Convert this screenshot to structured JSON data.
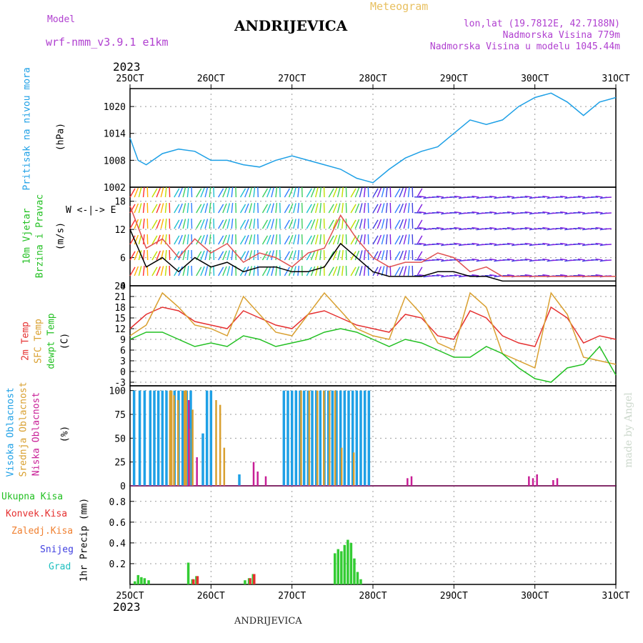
{
  "header": {
    "model_label": "Model",
    "model_name": "wrf-nmm_v3.9.1 e1km",
    "title": "ANDRIJEVICA",
    "meteogram": "Meteogram",
    "lonlat": "lon,lat (19.7812E, 42.7188N)",
    "altitude": "Nadmorska Visina 779m",
    "model_altitude": "Nadmorska Visina u modelu 1045.44m",
    "year_top": "2023",
    "year_bottom": "2023",
    "footer": "ANDRIJEVICA",
    "watermark": "made by Angel"
  },
  "colors": {
    "pressure": "#1ea0e6",
    "wind_speed": "#000000",
    "wind_gust": "#e05050",
    "temp2m": "#e53030",
    "sfc": "#d9a030",
    "dewpt": "#22c022",
    "cloud_high": "#1ea0e6",
    "cloud_mid": "#d9a030",
    "cloud_low": "#c81e96",
    "precip_total": "#33cc33",
    "precip_conv": "#e53030",
    "precip_frozen": "#f08030",
    "snow": "#4040e0",
    "graupel": "#20c0c0"
  },
  "chart_data": {
    "x_ticks": [
      "25OCT",
      "26OCT",
      "27OCT",
      "28OCT",
      "29OCT",
      "30OCT",
      "31OCT"
    ],
    "panels": [
      {
        "type": "line",
        "name": "pressure",
        "labels": [
          "Pritisak na nivou mora",
          "(hPa)"
        ],
        "y_ticks": [
          1002,
          1008,
          1014,
          1020
        ],
        "ylim": [
          1002,
          1024
        ],
        "series": [
          {
            "name": "Pritisak na nivou mora",
            "x": [
              0,
              0.1,
              0.2,
              0.4,
              0.6,
              0.8,
              1.0,
              1.2,
              1.4,
              1.6,
              1.8,
              2.0,
              2.2,
              2.4,
              2.6,
              2.8,
              3.0,
              3.2,
              3.4,
              3.6,
              3.8,
              4.0,
              4.2,
              4.4,
              4.6,
              4.8,
              5.0,
              5.2,
              5.4,
              5.6,
              5.8,
              6.0
            ],
            "values": [
              1013,
              1008,
              1007,
              1009.5,
              1010.5,
              1010,
              1008,
              1008,
              1007,
              1006.5,
              1008,
              1009,
              1008,
              1007,
              1006,
              1004,
              1003,
              1006,
              1008.5,
              1010,
              1011,
              1014,
              1017,
              1016,
              1017,
              1020,
              1022,
              1023,
              1021,
              1018,
              1021,
              1022
            ]
          }
        ]
      },
      {
        "type": "line",
        "name": "wind",
        "labels": [
          "10m Vjetar",
          "Brzina i Pravac",
          "(m/s)"
        ],
        "y_ticks": [
          0,
          6,
          12,
          18
        ],
        "ylim": [
          0,
          21
        ],
        "series": [
          {
            "name": "10m Vjetar Brzina",
            "x": [
              0,
              0.2,
              0.4,
              0.6,
              0.8,
              1.0,
              1.2,
              1.4,
              1.6,
              1.8,
              2.0,
              2.2,
              2.4,
              2.6,
              2.8,
              3.0,
              3.2,
              3.4,
              3.6,
              3.8,
              4.0,
              4.2,
              4.4,
              4.6,
              4.8,
              5.0,
              5.2,
              5.4,
              5.6,
              5.8,
              6.0
            ],
            "values": [
              12,
              4,
              6,
              3,
              6,
              4,
              5,
              3,
              4,
              4,
              3,
              3,
              4,
              9,
              6,
              3,
              2,
              2,
              2,
              3,
              3,
              2,
              2,
              1,
              1,
              1,
              1,
              1,
              1,
              1,
              1
            ]
          },
          {
            "name": "Udari",
            "x": [
              0,
              0.2,
              0.4,
              0.6,
              0.8,
              1.0,
              1.2,
              1.4,
              1.6,
              1.8,
              2.0,
              2.2,
              2.4,
              2.6,
              2.8,
              3.0,
              3.2,
              3.4,
              3.6,
              3.8,
              4.0,
              4.2,
              4.4,
              4.6,
              4.8,
              5.0,
              5.2,
              5.4,
              5.6,
              5.8,
              6.0
            ],
            "values": [
              17,
              8,
              10,
              6,
              10,
              7,
              9,
              5,
              7,
              6,
              4,
              7,
              8,
              15,
              10,
              6,
              4,
              5,
              5,
              7,
              6,
              3,
              4,
              2,
              2,
              2,
              2,
              2,
              2,
              2,
              2
            ]
          }
        ]
      },
      {
        "type": "line",
        "name": "temperature",
        "labels": [
          "2m Temp",
          "SFC Temp",
          "dewpt Temp",
          "(C)"
        ],
        "y_ticks": [
          -3,
          0,
          3,
          6,
          9,
          12,
          15,
          18,
          21,
          24
        ],
        "ylim": [
          -4,
          24
        ],
        "series": [
          {
            "name": "2m Temp",
            "x": [
              0,
              0.2,
              0.4,
              0.6,
              0.8,
              1.0,
              1.2,
              1.4,
              1.6,
              1.8,
              2.0,
              2.2,
              2.4,
              2.6,
              2.8,
              3.0,
              3.2,
              3.4,
              3.6,
              3.8,
              4.0,
              4.2,
              4.4,
              4.6,
              4.8,
              5.0,
              5.2,
              5.4,
              5.6,
              5.8,
              6.0
            ],
            "values": [
              12,
              16,
              18,
              17,
              14,
              13,
              12,
              17,
              15,
              13,
              12,
              16,
              17,
              15,
              13,
              12,
              11,
              16,
              15,
              10,
              9,
              17,
              15,
              10,
              8,
              7,
              18,
              15,
              8,
              10,
              9
            ]
          },
          {
            "name": "SFC Temp",
            "x": [
              0,
              0.2,
              0.4,
              0.6,
              0.8,
              1.0,
              1.2,
              1.4,
              1.6,
              1.8,
              2.0,
              2.2,
              2.4,
              2.6,
              2.8,
              3.0,
              3.2,
              3.4,
              3.6,
              3.8,
              4.0,
              4.2,
              4.4,
              4.6,
              4.8,
              5.0,
              5.2,
              5.4,
              5.6,
              5.8,
              6.0
            ],
            "values": [
              10,
              13,
              22,
              18,
              13,
              12,
              10,
              21,
              16,
              11,
              10,
              16,
              22,
              17,
              12,
              10,
              9,
              21,
              16,
              8,
              6,
              22,
              18,
              5,
              3,
              1,
              22,
              16,
              4,
              3,
              2
            ]
          },
          {
            "name": "dewpt Temp",
            "x": [
              0,
              0.2,
              0.4,
              0.6,
              0.8,
              1.0,
              1.2,
              1.4,
              1.6,
              1.8,
              2.0,
              2.2,
              2.4,
              2.6,
              2.8,
              3.0,
              3.2,
              3.4,
              3.6,
              3.8,
              4.0,
              4.2,
              4.4,
              4.6,
              4.8,
              5.0,
              5.2,
              5.4,
              5.6,
              5.8,
              6.0
            ],
            "values": [
              9,
              11,
              11,
              9,
              7,
              8,
              7,
              10,
              9,
              7,
              8,
              9,
              11,
              12,
              11,
              9,
              7,
              9,
              8,
              6,
              4,
              4,
              7,
              5,
              1,
              -2,
              -3,
              1,
              2,
              7,
              -1
            ]
          }
        ]
      },
      {
        "type": "bar",
        "name": "cloud",
        "labels": [
          "Visoka Oblacnost",
          "Srednja Oblacnost",
          "Niska Oblacnost",
          "(%)"
        ],
        "y_ticks": [
          0,
          25,
          50,
          75,
          100
        ],
        "ylim": [
          0,
          105
        ],
        "series": [
          {
            "name": "Visoka Oblacnost",
            "x": [
              0.05,
              0.12,
              0.18,
              0.25,
              0.3,
              0.35,
              0.4,
              0.45,
              0.5,
              0.55,
              0.6,
              0.65,
              0.7,
              0.75,
              0.9,
              0.95,
              1.0,
              1.35,
              1.9,
              1.95,
              2.0,
              2.05,
              2.1,
              2.15,
              2.2,
              2.25,
              2.3,
              2.35,
              2.4,
              2.45,
              2.5,
              2.55,
              2.6,
              2.65,
              2.7,
              2.75,
              2.8,
              2.85,
              2.9,
              2.95
            ],
            "values": [
              100,
              100,
              100,
              100,
              100,
              100,
              100,
              100,
              100,
              100,
              100,
              100,
              100,
              100,
              55,
              100,
              100,
              12,
              100,
              100,
              100,
              100,
              100,
              100,
              100,
              100,
              100,
              100,
              100,
              100,
              100,
              100,
              100,
              100,
              100,
              100,
              100,
              100,
              100,
              100
            ]
          },
          {
            "name": "Srednja Oblacnost",
            "x": [
              0.48,
              0.5,
              0.53,
              0.58,
              0.66,
              0.68,
              0.72,
              0.76,
              1.05,
              1.1,
              1.15,
              2.1,
              2.2,
              2.3,
              2.38,
              2.45,
              2.52,
              2.6,
              2.75
            ],
            "values": [
              100,
              100,
              95,
              90,
              100,
              100,
              60,
              80,
              90,
              85,
              40,
              100,
              100,
              100,
              100,
              100,
              100,
              40,
              35
            ]
          },
          {
            "name": "Niska Oblacnost",
            "x": [
              0.7,
              0.8,
              1.5,
              1.55,
              1.65,
              3.4,
              3.45,
              4.9,
              4.95,
              5.0,
              5.2,
              5.25
            ],
            "values": [
              90,
              30,
              25,
              15,
              10,
              8,
              10,
              10,
              8,
              12,
              6,
              8
            ]
          }
        ]
      },
      {
        "type": "bar",
        "name": "precip",
        "labels": [
          "Ukupna Kisa",
          "Konvek.Kisa",
          "Zaledj.Kisa",
          "Snijeg",
          "Grad",
          "1hr Precip (mm)"
        ],
        "y_ticks": [
          0.2,
          0.4,
          0.6,
          0.8
        ],
        "ylim": [
          0,
          0.95
        ],
        "series": [
          {
            "name": "Ukupna Kisa",
            "x": [
              0.06,
              0.1,
              0.14,
              0.18,
              0.23,
              0.72,
              0.77,
              0.82,
              1.42,
              1.47,
              1.52,
              2.53,
              2.57,
              2.61,
              2.65,
              2.69,
              2.73,
              2.77,
              2.81,
              2.85
            ],
            "values": [
              0.03,
              0.09,
              0.07,
              0.06,
              0.04,
              0.21,
              0.05,
              0.08,
              0.04,
              0.06,
              0.1,
              0.3,
              0.34,
              0.32,
              0.38,
              0.43,
              0.4,
              0.25,
              0.12,
              0.05
            ]
          },
          {
            "name": "Konvek.Kisa",
            "x": [
              0.77,
              0.82,
              1.47,
              1.52
            ],
            "values": [
              0.05,
              0.08,
              0.06,
              0.1
            ]
          }
        ]
      }
    ]
  }
}
